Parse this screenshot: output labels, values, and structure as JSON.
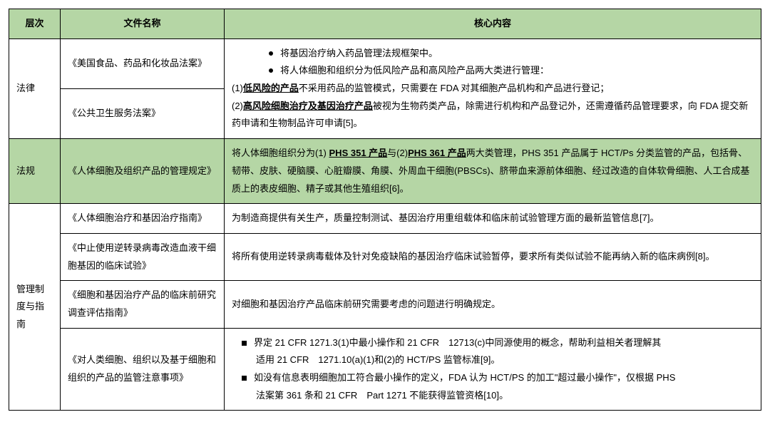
{
  "header": {
    "level": "层次",
    "docname": "文件名称",
    "core": "核心内容"
  },
  "rows": {
    "law": {
      "level": "法律",
      "doc1": "《美国食品、药品和化妆品法案》",
      "doc2": "《公共卫生服务法案》",
      "bullet1": "将基因治疗纳入药品管理法规框架中。",
      "bullet2": "将人体细胞和组织分为低风险产品和高风险产品两大类进行管理：",
      "line1_pre": "(1)",
      "line1_u": "低风险的产品",
      "line1_post": "不采用药品的监管模式，只需要在 FDA 对其细胞产品机构和产品进行登记；",
      "line2_pre": "(2)",
      "line2_u": "高风险细胞治疗及基因治疗产品",
      "line2_post": "被视为生物药类产品，除需进行机构和产品登记外，还需遵循药品管理要求，向 FDA 提交新药申请和生物制品许可申请[5]。"
    },
    "reg": {
      "level": "法规",
      "doc": "《人体细胞及组织产品的管理规定》",
      "text_pre": "将人体细胞组织分为(1) ",
      "u1": "PHS 351 产品",
      "mid": "与(2)",
      "u2": "PHS 361 产品",
      "text_post": "两大类管理，PHS 351 产品属于 HCT/Ps 分类监管的产品，包括骨、韧带、皮肤、硬脑膜、心脏瓣膜、角膜、外周血干细胞(PBSCs)、脐带血来源前体细胞、经过改造的自体软骨细胞、人工合成基质上的表皮细胞、精子或其他生殖组织[6]。"
    },
    "guide": {
      "level": "管理制度与指南",
      "r1_doc": "《人体细胞治疗和基因治疗指南》",
      "r1_core": "为制造商提供有关生产，质量控制测试、基因治疗用重组载体和临床前试验管理方面的最新监管信息[7]。",
      "r2_doc": "《中止使用逆转录病毒改造血液干细胞基因的临床试验》",
      "r2_core": "将所有使用逆转录病毒载体及针对免疫缺陷的基因治疗临床试验暂停，要求所有类似试验不能再纳入新的临床病例[8]。",
      "r3_doc": "《细胞和基因治疗产品的临床前研究调查评估指南》",
      "r3_core": "对细胞和基因治疗产品临床前研究需要考虑的问题进行明确规定。",
      "r4_doc": "《对人类细胞、组织以及基于细胞和组织的产品的监管注意事项》",
      "r4_b1a": "界定 21 CFR 1271.3(1)中最小操作和 21 CFR　12713(c)中同源使用的概念，帮助利益相关者理解其",
      "r4_b1b": "适用 21 CFR　1271.10(a)(1)和(2)的 HCT/PS 监管标准[9]。",
      "r4_b2a": "如没有信息表明细胞加工符合最小操作的定义，FDA 认为 HCT/PS 的加工\"超过最小操作\"，仅根据 PHS",
      "r4_b2b": "法案第 361 条和 21 CFR　Part 1271 不能获得监管资格[10]。"
    }
  },
  "colors": {
    "header_bg": "#b5d6a5",
    "border": "#000000",
    "text": "#000000",
    "bg": "#ffffff"
  }
}
